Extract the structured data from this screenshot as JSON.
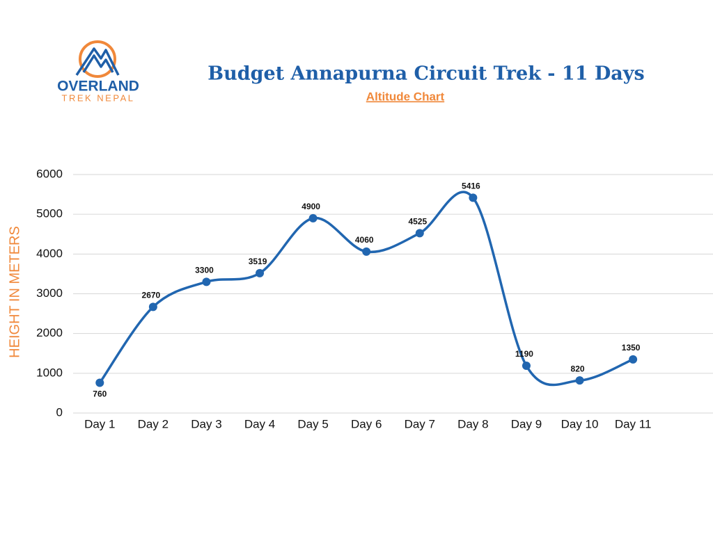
{
  "logo": {
    "name": "OVERLAND",
    "tagline": "TREK NEPAL"
  },
  "chart_data": {
    "type": "line",
    "title": "Budget Annapurna Circuit Trek - 11 Days",
    "subtitle": "Altitude Chart",
    "y_label": "HEIGHT IN METERS",
    "categories": [
      "Day 1",
      "Day 2",
      "Day 3",
      "Day 4",
      "Day 5",
      "Day 6",
      "Day 7",
      "Day 8",
      "Day 9",
      "Day 10",
      "Day 11"
    ],
    "values": [
      760,
      2670,
      3300,
      3519,
      4900,
      4060,
      4525,
      5416,
      1190,
      820,
      1350
    ],
    "color": "#2166b0",
    "ylim": [
      0,
      6000
    ],
    "yticks": [
      0,
      1000,
      2000,
      3000,
      4000,
      5000,
      6000
    ],
    "grid": true,
    "smooth": true
  }
}
